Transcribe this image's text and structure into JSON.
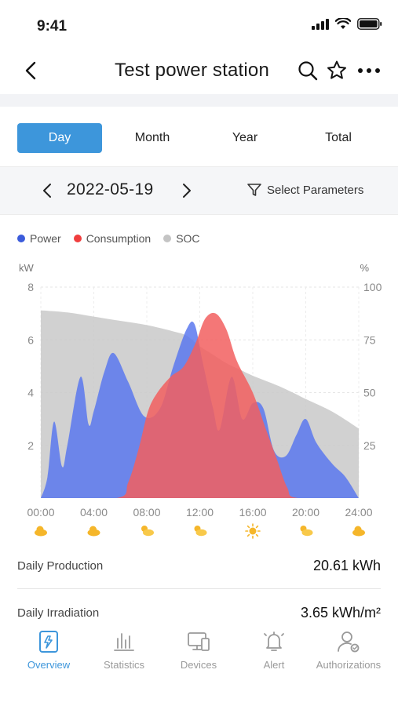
{
  "status_bar": {
    "time": "9:41"
  },
  "nav": {
    "title": "Test power station"
  },
  "tabs": [
    {
      "label": "Day",
      "active": true
    },
    {
      "label": "Month",
      "active": false
    },
    {
      "label": "Year",
      "active": false
    },
    {
      "label": "Total",
      "active": false
    }
  ],
  "date_selector": {
    "date": "2022-05-19",
    "select_params_label": "Select Parameters"
  },
  "legend": [
    {
      "label": "Power",
      "color": "#3b5bdb"
    },
    {
      "label": "Consumption",
      "color": "#f03e3e"
    },
    {
      "label": "SOC",
      "color": "#c4c4c4"
    }
  ],
  "chart_data": {
    "type": "area",
    "x_ticks": [
      "00:00",
      "04:00",
      "08:00",
      "12:00",
      "16:00",
      "20:00",
      "24:00"
    ],
    "y_left": {
      "label": "kW",
      "ticks": [
        "8",
        "6",
        "4",
        "2"
      ],
      "range": [
        0,
        8
      ]
    },
    "y_right": {
      "label": "%",
      "ticks": [
        "100",
        "75",
        "50",
        "25"
      ],
      "range": [
        0,
        100
      ]
    },
    "series": [
      {
        "name": "SOC",
        "axis": "right",
        "color": "#c9c9c9",
        "points": [
          [
            0,
            89
          ],
          [
            2,
            88
          ],
          [
            4,
            86
          ],
          [
            6,
            84
          ],
          [
            8,
            82
          ],
          [
            10,
            79
          ],
          [
            11,
            77
          ],
          [
            12,
            72
          ],
          [
            13,
            68
          ],
          [
            14,
            64
          ],
          [
            15,
            61
          ],
          [
            16,
            58
          ],
          [
            18,
            53
          ],
          [
            20,
            47
          ],
          [
            22,
            41
          ],
          [
            24,
            33
          ]
        ]
      },
      {
        "name": "Power",
        "axis": "left",
        "color": "#5a78ee",
        "points": [
          [
            0,
            0
          ],
          [
            0.5,
            0.8
          ],
          [
            1,
            2.9
          ],
          [
            1.6,
            1.2
          ],
          [
            2,
            2.0
          ],
          [
            3,
            4.6
          ],
          [
            3.6,
            2.8
          ],
          [
            4,
            3.3
          ],
          [
            4.8,
            4.8
          ],
          [
            5.5,
            5.5
          ],
          [
            6.6,
            4.4
          ],
          [
            7.8,
            3.1
          ],
          [
            9,
            3.4
          ],
          [
            10,
            5.0
          ],
          [
            11,
            6.4
          ],
          [
            11.6,
            6.6
          ],
          [
            12.2,
            5.2
          ],
          [
            13,
            3.4
          ],
          [
            13.5,
            2.6
          ],
          [
            14.4,
            4.6
          ],
          [
            15.2,
            3.0
          ],
          [
            16,
            3.6
          ],
          [
            16.8,
            3.4
          ],
          [
            17.6,
            1.8
          ],
          [
            18.5,
            1.6
          ],
          [
            19.3,
            2.4
          ],
          [
            20,
            3.0
          ],
          [
            20.8,
            2.1
          ],
          [
            22,
            1.3
          ],
          [
            23,
            0.8
          ],
          [
            24,
            0
          ]
        ]
      },
      {
        "name": "Consumption",
        "axis": "left",
        "color": "#f25f5f",
        "points": [
          [
            0,
            0
          ],
          [
            5.7,
            0
          ],
          [
            6.6,
            0.6
          ],
          [
            7.4,
            1.9
          ],
          [
            8.1,
            3.3
          ],
          [
            8.8,
            4.0
          ],
          [
            9.8,
            4.6
          ],
          [
            10.8,
            5.0
          ],
          [
            11.7,
            5.9
          ],
          [
            12.4,
            6.8
          ],
          [
            13.2,
            7.0
          ],
          [
            14.0,
            6.4
          ],
          [
            14.8,
            5.2
          ],
          [
            16,
            4.0
          ],
          [
            17,
            2.6
          ],
          [
            17.8,
            1.5
          ],
          [
            18.6,
            0.4
          ],
          [
            19.4,
            0
          ],
          [
            24,
            0
          ]
        ]
      }
    ],
    "weather_icons": [
      "cloudy-icon",
      "cloudy-icon",
      "partly-sunny-icon",
      "partly-sunny-icon",
      "sunny-icon",
      "partly-sunny-icon",
      "cloudy-icon"
    ]
  },
  "summary": [
    {
      "label": "Daily Production",
      "value": "20.61 kWh"
    },
    {
      "label": "Daily Irradiation",
      "value": "3.65 kWh/m²"
    }
  ],
  "bottom_nav": [
    {
      "label": "Overview",
      "icon": "overview-icon",
      "active": true
    },
    {
      "label": "Statistics",
      "icon": "statistics-icon",
      "active": false
    },
    {
      "label": "Devices",
      "icon": "devices-icon",
      "active": false
    },
    {
      "label": "Alert",
      "icon": "alert-bell-icon",
      "active": false
    },
    {
      "label": "Authorizations",
      "icon": "authorizations-icon",
      "active": false
    }
  ],
  "colors": {
    "accent": "#3d96db"
  }
}
